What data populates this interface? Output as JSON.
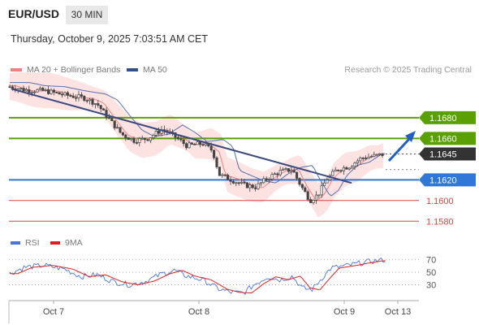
{
  "header": {
    "symbol": "EUR/USD",
    "timeframe": "30 MIN",
    "timestamp": "Thursday, October 9, 2025 7:03:51 AM CET"
  },
  "legend": {
    "items": [
      {
        "label": "MA 20 + Bollinger Bands",
        "color": "#f08080"
      },
      {
        "label": "MA 50",
        "color": "#2f4f8f"
      }
    ],
    "credit": "Research © 2025 Trading Central"
  },
  "rsi_legend": {
    "items": [
      {
        "label": "RSI",
        "color": "#4a74d9"
      },
      {
        "label": "9MA",
        "color": "#e02020"
      }
    ]
  },
  "colors": {
    "resistance": "#5aa000",
    "current": "#333333",
    "pivot": "#2f78d8",
    "support": "#e04040",
    "candle": "#444444",
    "band": "#fde2e2",
    "ma20": "#f08080",
    "ma50": "#5470b0",
    "trendline": "#3a4a80",
    "arrow": "#2060c0",
    "rsi": "#4a74d9",
    "rsi_ma": "#e02020"
  },
  "chart_data": [
    {
      "type": "line",
      "title": "EUR/USD 30 MIN",
      "subtype": "candlestick",
      "price_ylim": [
        1.157,
        1.172
      ],
      "x_ticks": [
        "Oct 7",
        "Oct 8",
        "Oct 9",
        "Oct 13"
      ],
      "price_levels": [
        {
          "label": "1.1680",
          "value": 1.168,
          "kind": "resistance"
        },
        {
          "label": "1.1660",
          "value": 1.166,
          "kind": "resistance"
        },
        {
          "label": "1.1645",
          "value": 1.1645,
          "kind": "current"
        },
        {
          "label": "1.1620",
          "value": 1.162,
          "kind": "pivot"
        },
        {
          "label": "1.1600",
          "value": 1.16,
          "kind": "support"
        },
        {
          "label": "1.1580",
          "value": 1.158,
          "kind": "support"
        }
      ],
      "series": [
        {
          "name": "MA 20 + Bollinger Bands",
          "x": [
            "Oct 7",
            "Oct 8",
            "Oct 9"
          ],
          "values": [
            1.1705,
            1.1655,
            1.1625
          ]
        },
        {
          "name": "MA 50",
          "x": [
            "Oct 7",
            "Oct 8",
            "Oct 9"
          ],
          "values": [
            1.17,
            1.1668,
            1.1618
          ]
        }
      ]
    },
    {
      "type": "line",
      "title": "RSI",
      "ylim": [
        10,
        80
      ],
      "y_ticks": [
        70,
        50,
        30
      ],
      "x_ticks": [
        "Oct 7",
        "Oct 8",
        "Oct 9",
        "Oct 13"
      ],
      "series": [
        {
          "name": "RSI",
          "x": [
            "Oct 7",
            "Oct 8",
            "Oct 9"
          ],
          "values": [
            58,
            35,
            64
          ]
        },
        {
          "name": "9MA",
          "x": [
            "Oct 7",
            "Oct 8",
            "Oct 9"
          ],
          "values": [
            57,
            38,
            60
          ]
        }
      ]
    }
  ]
}
